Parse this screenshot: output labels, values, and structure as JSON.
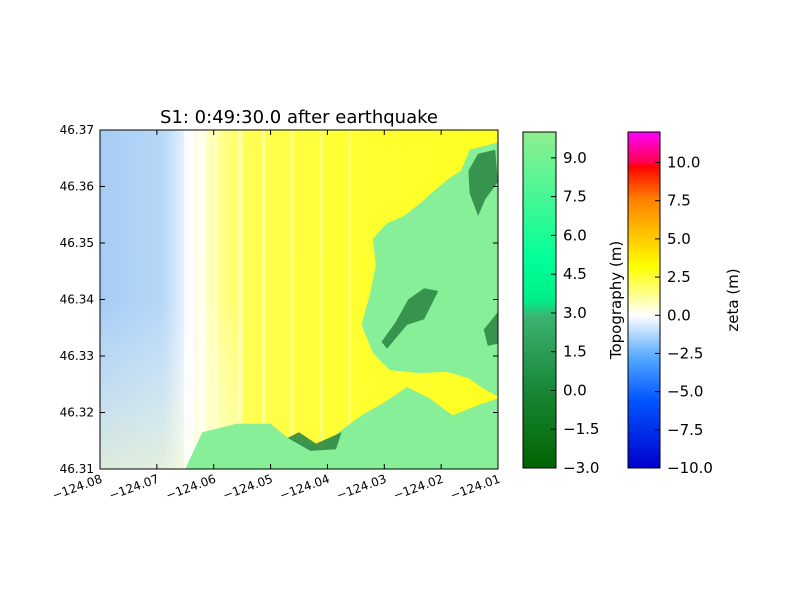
{
  "chart_data": {
    "type": "heatmap",
    "title": "S1: 0:49:30.0 after earthquake",
    "xlabel": "",
    "ylabel": "",
    "xlim": [
      -124.08,
      -124.01
    ],
    "ylim": [
      46.31,
      46.37
    ],
    "x_ticks": [
      -124.08,
      -124.07,
      -124.06,
      -124.05,
      -124.04,
      -124.03,
      -124.02,
      -124.01
    ],
    "x_tick_labels": [
      "−124.08",
      "−124.07",
      "−124.06",
      "−124.05",
      "−124.04",
      "−124.03",
      "−124.02",
      "−124.01"
    ],
    "y_ticks": [
      46.31,
      46.32,
      46.33,
      46.34,
      46.35,
      46.36,
      46.37
    ],
    "y_tick_labels": [
      "46.31",
      "46.32",
      "46.33",
      "46.34",
      "46.35",
      "46.36",
      "46.37"
    ],
    "land_regions": [
      [
        [
          -124.065,
          46.31
        ],
        [
          -124.062,
          46.3165
        ],
        [
          -124.056,
          46.318
        ],
        [
          -124.05,
          46.318
        ],
        [
          -124.047,
          46.3155
        ],
        [
          -124.043,
          46.3145
        ],
        [
          -124.041,
          46.3135
        ],
        [
          -124.038,
          46.3165
        ],
        [
          -124.034,
          46.3195
        ],
        [
          -124.03,
          46.3218
        ],
        [
          -124.026,
          46.3245
        ],
        [
          -124.022,
          46.3225
        ],
        [
          -124.018,
          46.3195
        ],
        [
          -124.013,
          46.3215
        ],
        [
          -124.01,
          46.3225
        ],
        [
          -124.01,
          46.31
        ]
      ],
      [
        [
          -124.01,
          46.3228
        ],
        [
          -124.013,
          46.3245
        ],
        [
          -124.015,
          46.326
        ],
        [
          -124.019,
          46.3272
        ],
        [
          -124.024,
          46.327
        ],
        [
          -124.029,
          46.3275
        ],
        [
          -124.032,
          46.3305
        ],
        [
          -124.034,
          46.3355
        ],
        [
          -124.0325,
          46.341
        ],
        [
          -124.0315,
          46.346
        ],
        [
          -124.032,
          46.3508
        ],
        [
          -124.0295,
          46.3535
        ],
        [
          -124.0265,
          46.3548
        ],
        [
          -124.0235,
          46.3572
        ],
        [
          -124.0215,
          46.359
        ],
        [
          -124.0185,
          46.3615
        ],
        [
          -124.0165,
          46.3628
        ],
        [
          -124.015,
          46.3665
        ],
        [
          -124.01,
          46.3678
        ]
      ]
    ],
    "dark_land_regions": [
      [
        [
          -124.0135,
          46.3658
        ],
        [
          -124.0105,
          46.3665
        ],
        [
          -124.01,
          46.3608
        ],
        [
          -124.0122,
          46.3578
        ],
        [
          -124.0135,
          46.3548
        ],
        [
          -124.015,
          46.3588
        ],
        [
          -124.0152,
          46.3628
        ]
      ],
      [
        [
          -124.0295,
          46.3313
        ],
        [
          -124.026,
          46.3355
        ],
        [
          -124.023,
          46.3365
        ],
        [
          -124.0215,
          46.3395
        ],
        [
          -124.0205,
          46.3415
        ],
        [
          -124.023,
          46.342
        ],
        [
          -124.0258,
          46.34
        ],
        [
          -124.028,
          46.336
        ],
        [
          -124.0305,
          46.3325
        ]
      ],
      [
        [
          -124.0125,
          46.3347
        ],
        [
          -124.01,
          46.3378
        ],
        [
          -124.01,
          46.3322
        ],
        [
          -124.0118,
          46.3318
        ]
      ],
      [
        [
          -124.047,
          46.3155
        ],
        [
          -124.045,
          46.3165
        ],
        [
          -124.042,
          46.3145
        ],
        [
          -124.0375,
          46.3165
        ],
        [
          -124.0385,
          46.3135
        ],
        [
          -124.043,
          46.3132
        ]
      ]
    ],
    "topography_colorbar": {
      "label": "Topography (m)",
      "range": [
        -3.0,
        10.0
      ],
      "ticks": [
        -3.0,
        -1.5,
        0.0,
        1.5,
        3.0,
        4.5,
        6.0,
        7.5,
        9.0
      ],
      "tick_labels": [
        "−3.0",
        "−1.5",
        "0.0",
        "1.5",
        "3.0",
        "4.5",
        "6.0",
        "7.5",
        "9.0"
      ],
      "colors": [
        "#006400",
        "#00ff99",
        "#90ee90"
      ]
    },
    "zeta_colorbar": {
      "label": "zeta (m)",
      "range": [
        -10.0,
        12.0
      ],
      "ticks": [
        -10.0,
        -7.5,
        -5.0,
        -2.5,
        0.0,
        2.5,
        5.0,
        7.5,
        10.0
      ],
      "tick_labels": [
        "−10.0",
        "−7.5",
        "−5.0",
        "−2.5",
        "0.0",
        "2.5",
        "5.0",
        "7.5",
        "10.0"
      ],
      "colors": [
        "#0000cc",
        "#3399ff",
        "#ffffff",
        "#ffff00",
        "#ff8c00",
        "#ff0000",
        "#ff00ff"
      ]
    }
  }
}
